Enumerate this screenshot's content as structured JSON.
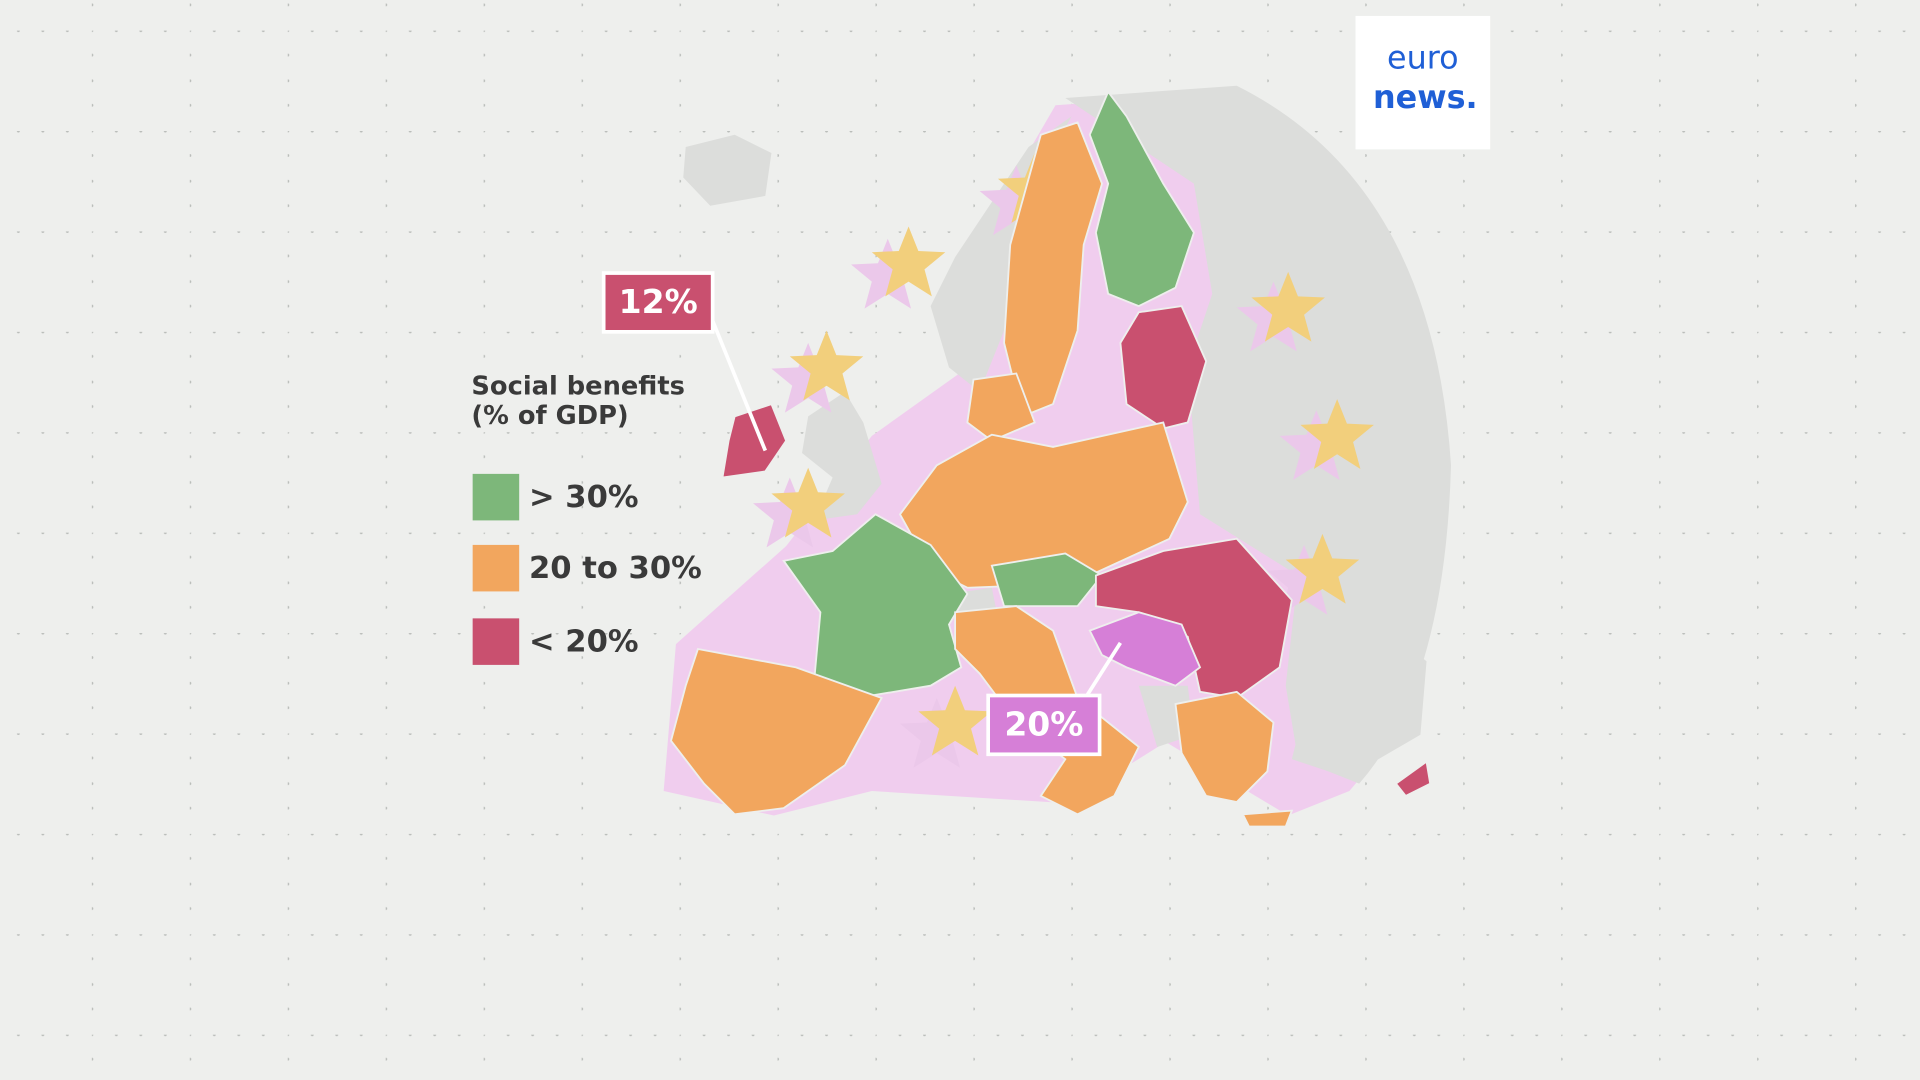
{
  "legend": {
    "title": [
      "Social benefits",
      "(% of GDP)"
    ],
    "items": [
      {
        "label": "> 30%",
        "color": "#7db77a"
      },
      {
        "label": "20 to 30%",
        "color": "#f2a65e"
      },
      {
        "label": "< 20%",
        "color": "#c9506f"
      }
    ]
  },
  "callouts": [
    {
      "label": "12%",
      "color": "#c9506f"
    },
    {
      "label": "20%",
      "color": "#d67fd7"
    }
  ],
  "logo": [
    "euro",
    "news."
  ]
}
